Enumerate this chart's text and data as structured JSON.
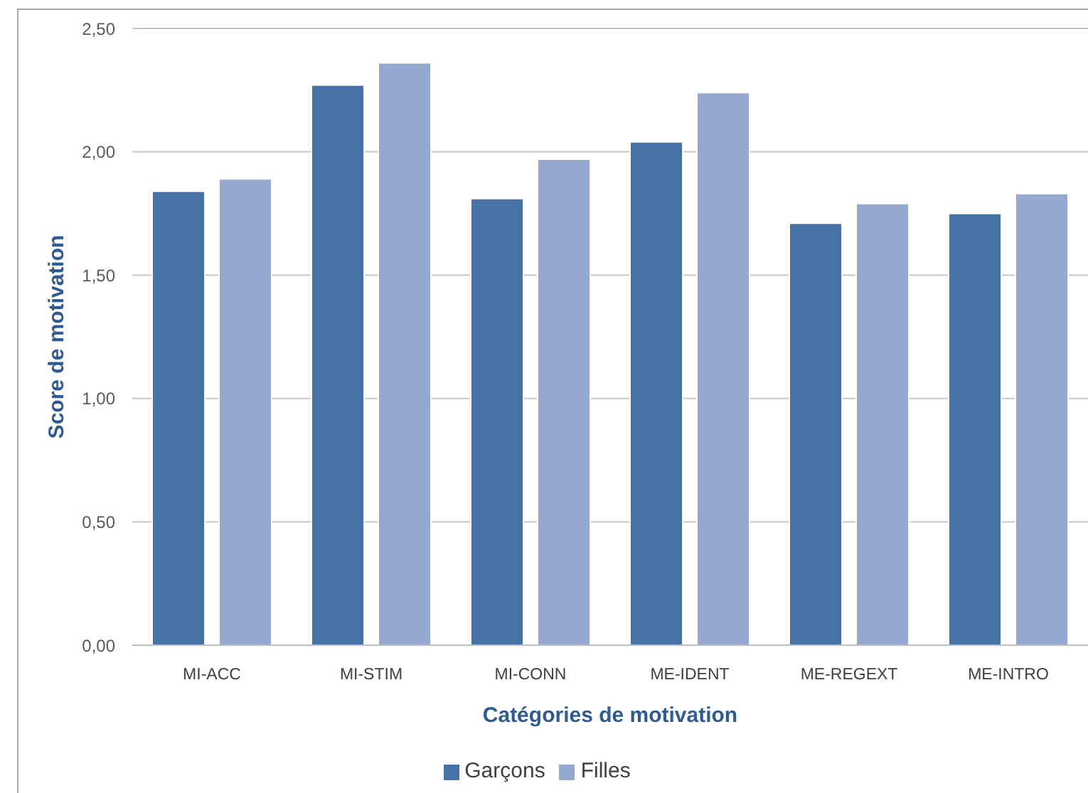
{
  "chart_data": {
    "type": "bar",
    "xlabel": "Catégories de motivation",
    "ylabel": "Score de motivation",
    "categories": [
      "MI-ACC",
      "MI-STIM",
      "MI-CONN",
      "ME-IDENT",
      "ME-REGEXT",
      "ME-INTRO"
    ],
    "series": [
      {
        "name": "Garçons",
        "color": "#4672a7",
        "values": [
          1.84,
          2.27,
          1.81,
          2.04,
          1.71,
          1.75
        ]
      },
      {
        "name": "Filles",
        "color": "#95a9d0",
        "values": [
          1.89,
          2.36,
          1.97,
          2.24,
          1.79,
          1.83
        ]
      }
    ],
    "ylim": [
      0,
      2.5
    ],
    "yticks": [
      {
        "value": 0,
        "label": "0,00"
      },
      {
        "value": 0.5,
        "label": "0,50"
      },
      {
        "value": 1,
        "label": "1,00"
      },
      {
        "value": 1.5,
        "label": "1,50"
      },
      {
        "value": 2,
        "label": "2,00"
      },
      {
        "value": 2.5,
        "label": "2,50"
      }
    ],
    "grid": "y",
    "legend": "bottom"
  }
}
